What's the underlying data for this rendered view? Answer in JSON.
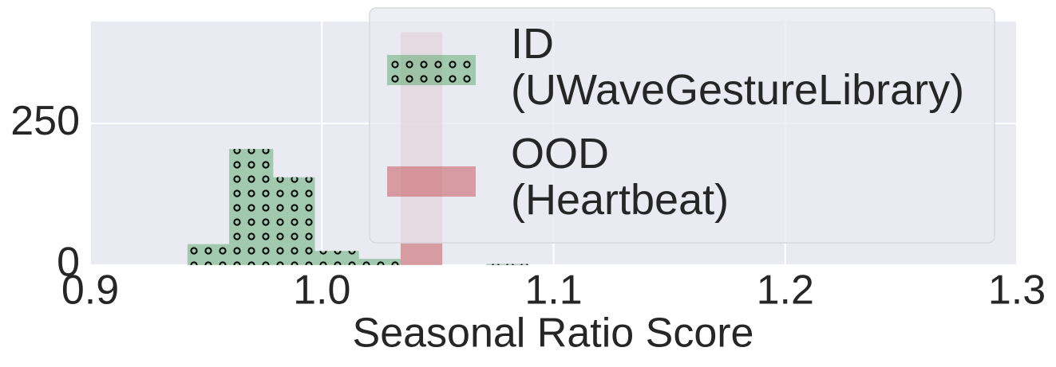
{
  "chart_data": {
    "type": "histogram",
    "xlabel": "Seasonal Ratio Score",
    "xlim": [
      0.9,
      1.3
    ],
    "xticks": [
      0.9,
      {
        "value": 1.0,
        "label": "1.0"
      },
      1.1,
      1.2,
      1.3
    ],
    "ylim": [
      0,
      430
    ],
    "yticks": [
      0,
      250
    ],
    "grid": true,
    "legend": "upper right",
    "series": [
      {
        "name": "ID\n(UWaveGestureLibrary)",
        "color": "#55a868",
        "alpha": 0.5,
        "hatch": "o",
        "bins": [
          0.942,
          0.96,
          0.979,
          0.997,
          1.016,
          1.034,
          1.052,
          1.071,
          1.089
        ],
        "values": [
          37,
          205,
          155,
          25,
          11,
          0,
          0,
          2
        ]
      },
      {
        "name": "OOD\n(Heartbeat)",
        "color": "#c44e52",
        "alpha": 0.5,
        "bins": [
          1.034,
          1.052
        ],
        "values": [
          411
        ]
      }
    ]
  }
}
